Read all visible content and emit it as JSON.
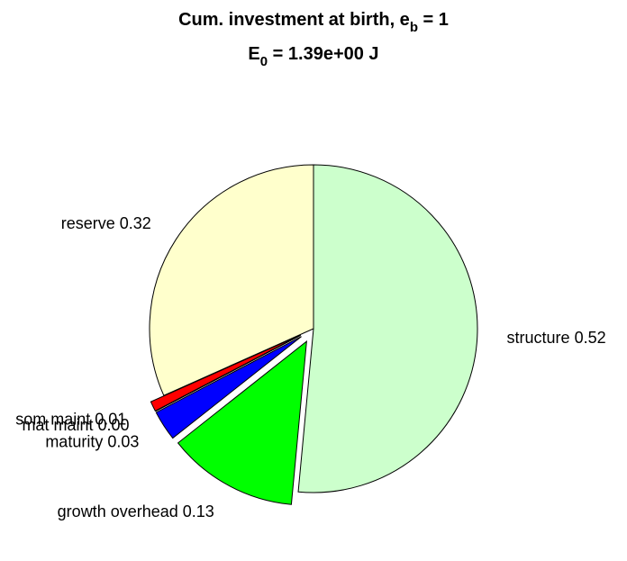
{
  "chart_data": {
    "type": "pie",
    "title": {
      "text": "Cum. investment at birth, e",
      "sub": "b",
      "tail": " = 1"
    },
    "subtitle": {
      "text": "E",
      "sub": "0",
      "tail": " = 1.39e+00 J"
    },
    "categories": [
      "structure",
      "growth overhead",
      "maturity",
      "mat maint",
      "som maint",
      "reserve"
    ],
    "values": [
      0.52,
      0.13,
      0.03,
      0.0,
      0.01,
      0.32
    ],
    "value_labels": [
      "0.52",
      "0.13",
      "0.03",
      "0.00",
      "0.01",
      "0.32"
    ],
    "colors": [
      "#ccffcc",
      "#00ff00",
      "#0000ff",
      "#000000",
      "#ff0000",
      "#ffffcc"
    ],
    "exploded": [
      false,
      true,
      true,
      true,
      true,
      false
    ]
  }
}
